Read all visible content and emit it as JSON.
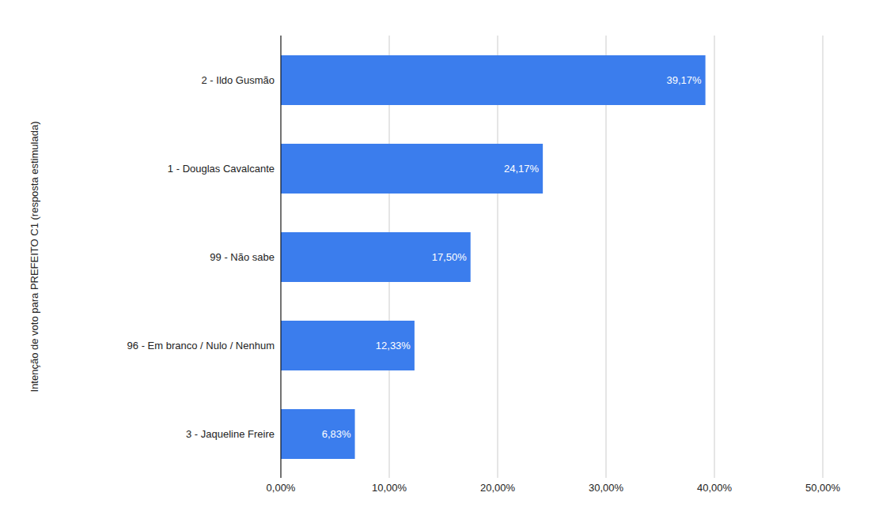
{
  "chart_data": {
    "type": "bar",
    "orientation": "horizontal",
    "y_label": "Intenção de voto para PREFEITO C1 (resposta estimulada)",
    "categories": [
      "2 - Ildo Gusmão",
      "1 - Douglas Cavalcante",
      "99 - Não sabe",
      "96 - Em branco / Nulo / Nenhum",
      "3 - Jaqueline Freire"
    ],
    "values": [
      39.17,
      24.17,
      17.5,
      12.33,
      6.83
    ],
    "value_labels": [
      "39,17%",
      "24,17%",
      "17,50%",
      "12,33%",
      "6,83%"
    ],
    "data_labels": true,
    "color": "#3b7ded",
    "xlim": [
      0,
      50
    ],
    "xticks": [
      {
        "value": 0,
        "label": "0,00%"
      },
      {
        "value": 10,
        "label": "10,00%"
      },
      {
        "value": 20,
        "label": "20,00%"
      },
      {
        "value": 30,
        "label": "30,00%"
      },
      {
        "value": 40,
        "label": "40,00%"
      },
      {
        "value": 50,
        "label": "50,00%"
      }
    ],
    "grid": true
  }
}
